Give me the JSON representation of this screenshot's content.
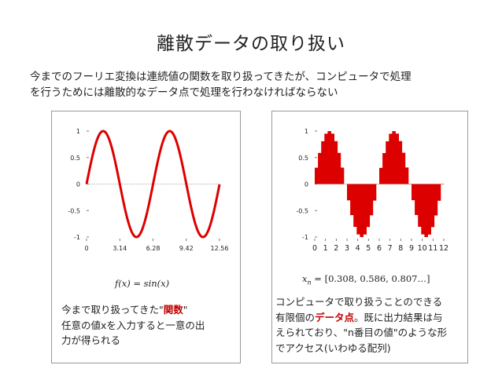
{
  "title": "離散データの取り扱い",
  "intro": {
    "line1": "今までのフーリエ変換は連続値の関数を取り扱ってきたが、コンピュータで処理",
    "line2": "を行うためには離散的なデータ点で処理を行わなければならない"
  },
  "left_panel": {
    "formula": "f(x) = sin(x)",
    "desc_line1_before": "今まで取り扱ってきた\"",
    "desc_line1_bold": "関数",
    "desc_line1_after": "\"",
    "desc_line2": "任意の値xを入力すると一意の出",
    "desc_line3": "力が得られる"
  },
  "right_panel": {
    "formula_var": "x",
    "formula_sub": "n",
    "formula_rest": " = [0.308, 0.586, 0.807…]",
    "desc_line1": "コンピュータで取り扱うことのできる",
    "desc_line2_before": "有限個の",
    "desc_line2_bold": "データ点",
    "desc_line2_after": "。既に出力結果は与",
    "desc_line3": "えられており、\"n番目の値\"のような形",
    "desc_line4": "でアクセス(いわゆる配列)"
  },
  "colors": {
    "accent": "#dd0000",
    "zero_line": "#999999"
  },
  "chart_data": [
    {
      "type": "line",
      "function": "sin(x)",
      "x_ticks": [
        "0",
        "3.14",
        "6.28",
        "9.42",
        "12.56"
      ],
      "y_ticks": [
        "1",
        "0.5",
        "0",
        "-0.5",
        "-1"
      ],
      "xlim": [
        0,
        12.56
      ],
      "ylim": [
        -1,
        1
      ],
      "series": [
        {
          "values_function": "sin(x)"
        }
      ]
    },
    {
      "type": "bar",
      "x_ticks": [
        "0",
        "1",
        "2",
        "3",
        "4",
        "5",
        "6",
        "7",
        "8",
        "9",
        "10",
        "11",
        "12"
      ],
      "y_ticks": [
        "1",
        "0.5",
        "0",
        "-0.5",
        "-1"
      ],
      "xlim": [
        0,
        12.56
      ],
      "ylim": [
        -1,
        1
      ],
      "sample_count": 40,
      "series": [
        {
          "values_function": "sin(x)",
          "values_first": [
            0.308,
            0.586,
            0.807
          ]
        }
      ]
    }
  ]
}
